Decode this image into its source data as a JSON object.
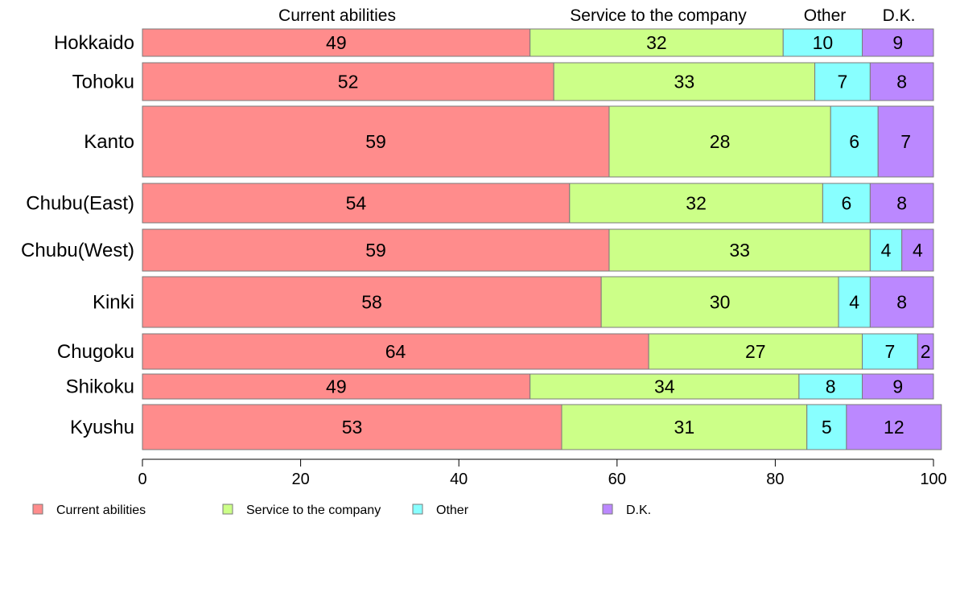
{
  "chart_data": {
    "type": "bar",
    "orientation": "horizontal",
    "stacked": true,
    "xlim": [
      0,
      100
    ],
    "x_ticks": [
      0,
      20,
      40,
      60,
      80,
      100
    ],
    "categories": [
      "Hokkaido",
      "Tohoku",
      "Kanto",
      "Chubu(East)",
      "Chubu(West)",
      "Kinki",
      "Chugoku",
      "Shikoku",
      "Kyushu"
    ],
    "series": [
      {
        "name": "Current abilities",
        "color": "#ff8c8c",
        "values": [
          49,
          52,
          59,
          54,
          59,
          58,
          64,
          49,
          53
        ]
      },
      {
        "name": "Service to the company",
        "color": "#ccff88",
        "values": [
          32,
          33,
          28,
          32,
          33,
          30,
          27,
          34,
          31
        ]
      },
      {
        "name": "Other",
        "color": "#88ffff",
        "values": [
          10,
          7,
          6,
          6,
          4,
          4,
          7,
          8,
          5
        ]
      },
      {
        "name": "D.K.",
        "color": "#bb88ff",
        "values": [
          9,
          8,
          7,
          8,
          4,
          8,
          2,
          9,
          12
        ]
      }
    ],
    "top_labels": [
      "Current abilities",
      "Service to the company",
      "Other",
      "D.K."
    ],
    "legend": [
      "Current abilities",
      "Service to the company",
      "Other",
      "D.K."
    ],
    "legend_position": "bottom",
    "grid": false
  }
}
